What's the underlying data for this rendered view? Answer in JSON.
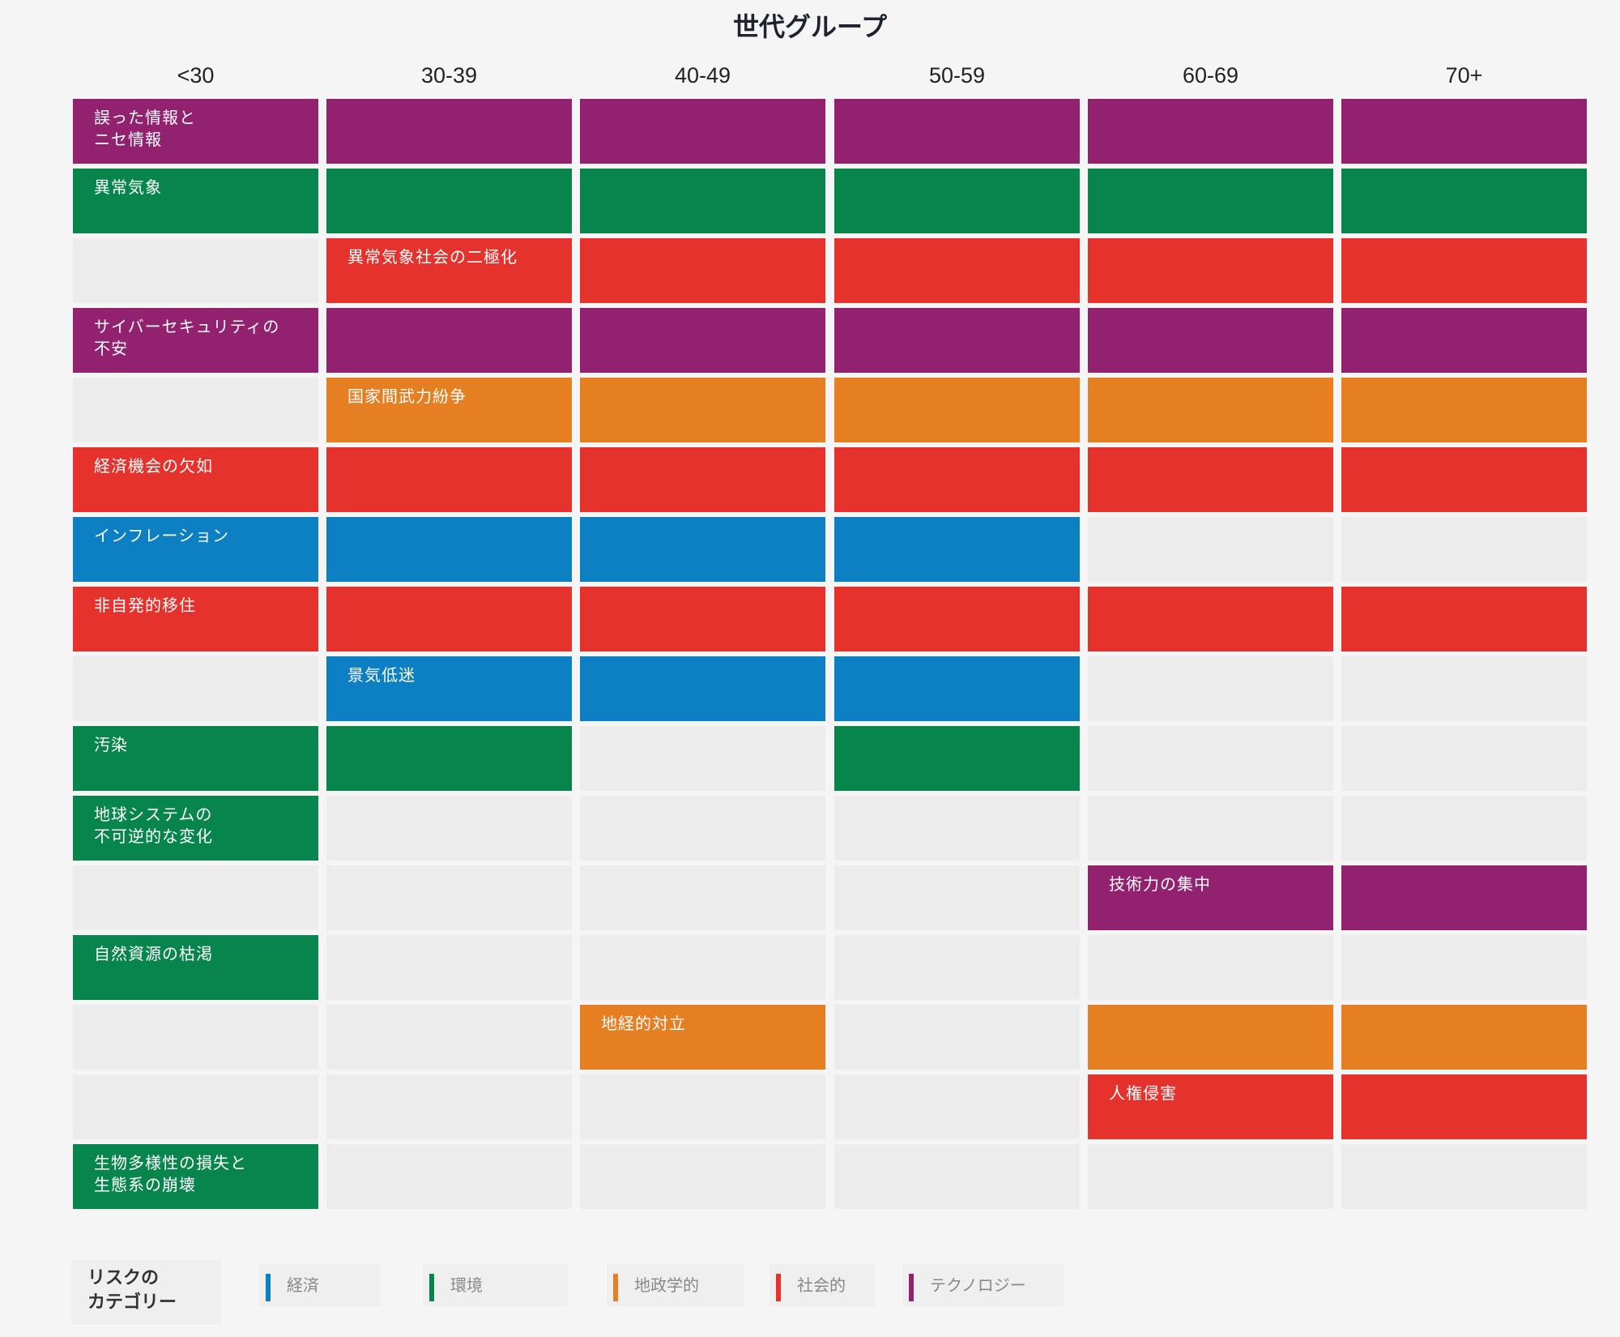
{
  "chart_data": {
    "type": "table",
    "title": "世代グループ",
    "columns": [
      "<30",
      "30-39",
      "40-49",
      "50-59",
      "60-69",
      "70+"
    ],
    "rows": [
      {
        "label": "誤った情報と\nニセ情報",
        "category": "テクノロジー",
        "present": [
          1,
          1,
          1,
          1,
          1,
          1
        ],
        "label_col": 0
      },
      {
        "label": "異常気象",
        "category": "環境",
        "present": [
          1,
          1,
          1,
          1,
          1,
          1
        ],
        "label_col": 0
      },
      {
        "label": "異常気象社会の二極化",
        "category": "社会的",
        "present": [
          0,
          1,
          1,
          1,
          1,
          1
        ],
        "label_col": 1
      },
      {
        "label": "サイバーセキュリティの\n不安",
        "category": "テクノロジー",
        "present": [
          1,
          1,
          1,
          1,
          1,
          1
        ],
        "label_col": 0
      },
      {
        "label": "国家間武力紛争",
        "category": "地政学的",
        "present": [
          0,
          1,
          1,
          1,
          1,
          1
        ],
        "label_col": 1
      },
      {
        "label": "経済機会の欠如",
        "category": "社会的",
        "present": [
          1,
          1,
          1,
          1,
          1,
          1
        ],
        "label_col": 0
      },
      {
        "label": "インフレーション",
        "category": "経済",
        "present": [
          1,
          1,
          1,
          1,
          0,
          0
        ],
        "label_col": 0
      },
      {
        "label": "非自発的移住",
        "category": "社会的",
        "present": [
          1,
          1,
          1,
          1,
          1,
          1
        ],
        "label_col": 0
      },
      {
        "label": "景気低迷",
        "category": "経済",
        "present": [
          0,
          1,
          1,
          1,
          0,
          0
        ],
        "label_col": 1
      },
      {
        "label": "汚染",
        "category": "環境",
        "present": [
          1,
          1,
          0,
          1,
          0,
          0
        ],
        "label_col": 0
      },
      {
        "label": "地球システムの\n不可逆的な変化",
        "category": "環境",
        "present": [
          1,
          0,
          0,
          0,
          0,
          0
        ],
        "label_col": 0
      },
      {
        "label": "技術力の集中",
        "category": "テクノロジー",
        "present": [
          0,
          0,
          0,
          0,
          1,
          1
        ],
        "label_col": 4
      },
      {
        "label": "自然資源の枯渇",
        "category": "環境",
        "present": [
          1,
          0,
          0,
          0,
          0,
          0
        ],
        "label_col": 0
      },
      {
        "label": "地経的対立",
        "category": "地政学的",
        "present": [
          0,
          0,
          1,
          0,
          1,
          1
        ],
        "label_col": 2
      },
      {
        "label": "人権侵害",
        "category": "社会的",
        "present": [
          0,
          0,
          0,
          0,
          1,
          1
        ],
        "label_col": 4
      },
      {
        "label": "生物多様性の損失と\n生態系の崩壊",
        "category": "環境",
        "present": [
          1,
          0,
          0,
          0,
          0,
          0
        ],
        "label_col": 0
      }
    ],
    "legend": {
      "title": "リスクの\nカテゴリー",
      "items": [
        {
          "name": "経済",
          "color": "#0d7fc3"
        },
        {
          "name": "環境",
          "color": "#07854d"
        },
        {
          "name": "地政学的",
          "color": "#e67e22"
        },
        {
          "name": "社会的",
          "color": "#e5322c"
        },
        {
          "name": "テクノロジー",
          "color": "#922170"
        }
      ]
    },
    "empty_color": "#ececec"
  }
}
